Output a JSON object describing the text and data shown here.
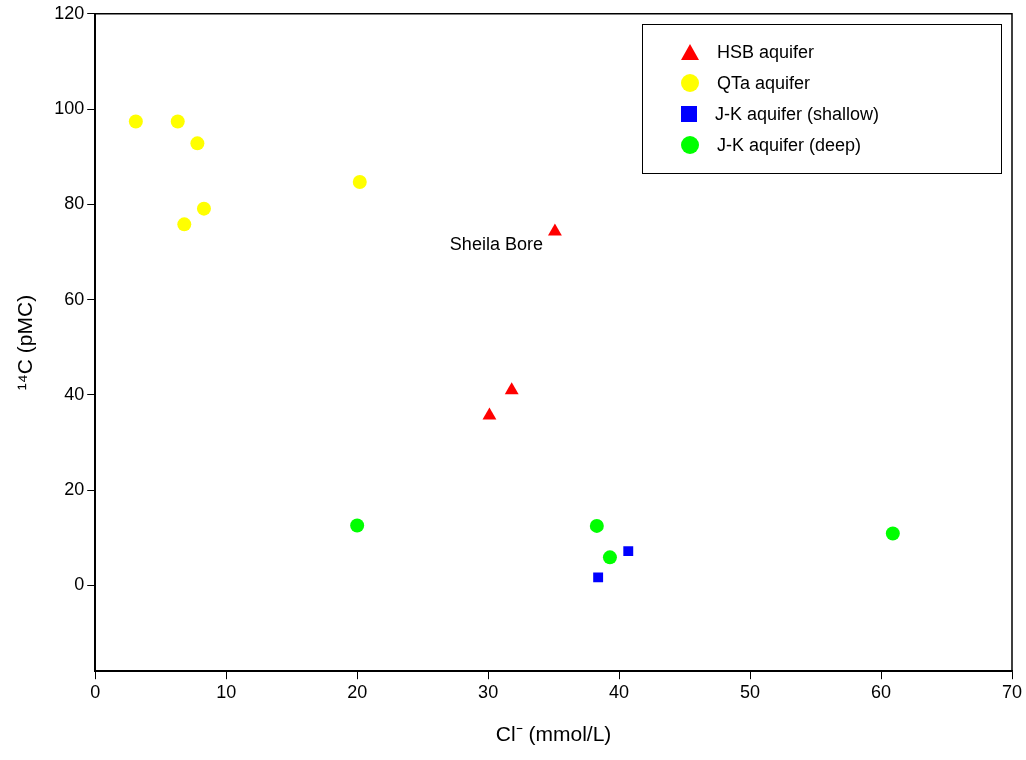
{
  "chart_data": {
    "type": "scatter",
    "xlabel": "Cl⁻ (mmol/L)",
    "ylabel": "¹⁴C (pMC)",
    "xlim": [
      0,
      70
    ],
    "xticks": [
      0,
      10,
      20,
      30,
      40,
      50,
      60,
      70
    ],
    "ylim": [
      -18,
      120
    ],
    "yticks": [
      0,
      20,
      40,
      60,
      80,
      100,
      120
    ],
    "grid": false,
    "legend": "top right",
    "series": [
      {
        "name": "HSB aquifer",
        "color": "#ff0000",
        "marker": "triangle",
        "x": [
          35.1,
          31.8,
          30.1
        ],
        "values": [
          74.3,
          41,
          35.7
        ]
      },
      {
        "name": "QTa aquifer",
        "color": "#ffff00",
        "marker": "circle",
        "x": [
          3.1,
          6.3,
          7.8,
          6.8,
          8.3,
          20.2
        ],
        "values": [
          97.4,
          97.4,
          92.8,
          75.8,
          79.1,
          84.7
        ]
      },
      {
        "name": "J-K aquifer (shallow)",
        "color": "#0000ff",
        "marker": "square",
        "x": [
          38.4,
          40.7
        ],
        "values": [
          1.7,
          7.2
        ]
      },
      {
        "name": "J-K aquifer (deep)",
        "color": "#00ff00",
        "marker": "circle",
        "x": [
          20.0,
          38.3,
          39.3,
          60.9
        ],
        "values": [
          12.6,
          12.5,
          5.9,
          10.9
        ]
      }
    ],
    "annotations": [
      {
        "text": "Sheila Bore",
        "x": 35.1,
        "y": 74.3
      }
    ]
  }
}
